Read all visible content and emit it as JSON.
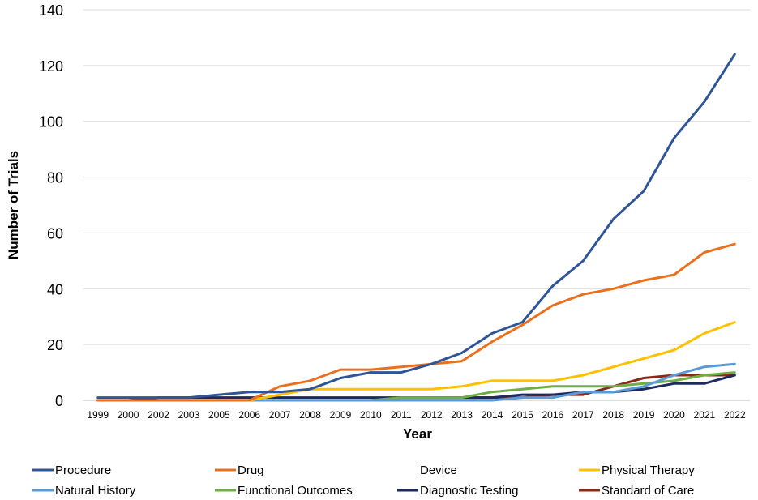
{
  "chart_data": {
    "type": "line",
    "title": "",
    "xlabel": "Year",
    "ylabel": "Number of Trials",
    "ylim": [
      0,
      140
    ],
    "yticks": [
      0,
      20,
      40,
      60,
      80,
      100,
      120,
      140
    ],
    "grid": true,
    "legend_position": "bottom",
    "categories": [
      "1999",
      "2000",
      "2002",
      "2003",
      "2005",
      "2006",
      "2007",
      "2008",
      "2009",
      "2010",
      "2011",
      "2012",
      "2013",
      "2014",
      "2015",
      "2016",
      "2017",
      "2018",
      "2019",
      "2020",
      "2021",
      "2022"
    ],
    "series": [
      {
        "name": "Procedure",
        "color": "#2F5597",
        "values": [
          1,
          1,
          1,
          1,
          2,
          3,
          3,
          4,
          8,
          10,
          10,
          13,
          17,
          24,
          28,
          41,
          50,
          65,
          75,
          94,
          107,
          124
        ]
      },
      {
        "name": "Drug",
        "color": "#E8701E",
        "values": [
          0,
          0,
          0,
          0,
          0,
          0,
          5,
          7,
          11,
          11,
          12,
          13,
          14,
          21,
          27,
          34,
          38,
          40,
          43,
          45,
          53,
          56
        ]
      },
      {
        "name": "Device",
        "color": "#A5A5A5",
        "hidden": true,
        "values": [
          0,
          0,
          0,
          0,
          0,
          0,
          0,
          0,
          0,
          0,
          0,
          0,
          0,
          0,
          0,
          0,
          0,
          0,
          0,
          0,
          0,
          0
        ]
      },
      {
        "name": "Physical Therapy",
        "color": "#FFC000",
        "values": [
          0,
          0,
          0,
          0,
          0,
          0,
          2,
          4,
          4,
          4,
          4,
          4,
          5,
          7,
          7,
          7,
          9,
          12,
          15,
          18,
          24,
          28
        ]
      },
      {
        "name": "Natural History",
        "color": "#5B9BD5",
        "values": [
          0,
          0,
          0,
          0,
          0,
          0,
          0,
          0,
          0,
          0,
          0,
          0,
          0,
          0,
          1,
          1,
          3,
          3,
          5,
          9,
          12,
          13
        ]
      },
      {
        "name": "Functional Outcomes",
        "color": "#70AD47",
        "values": [
          0,
          0,
          0,
          0,
          0,
          0,
          0,
          0,
          0,
          0,
          1,
          1,
          1,
          3,
          4,
          5,
          5,
          5,
          6,
          7,
          9,
          10
        ]
      },
      {
        "name": "Diagnostic Testing",
        "color": "#1F2A5C",
        "values": [
          0,
          0,
          1,
          1,
          1,
          1,
          1,
          1,
          1,
          1,
          1,
          1,
          1,
          1,
          2,
          2,
          3,
          3,
          4,
          6,
          6,
          9
        ]
      },
      {
        "name": "Standard of Care",
        "color": "#8B2A14",
        "values": [
          0,
          0,
          0,
          0,
          0,
          0,
          0,
          0,
          0,
          0,
          1,
          1,
          1,
          1,
          1,
          2,
          2,
          5,
          8,
          9,
          9,
          9
        ]
      }
    ]
  }
}
